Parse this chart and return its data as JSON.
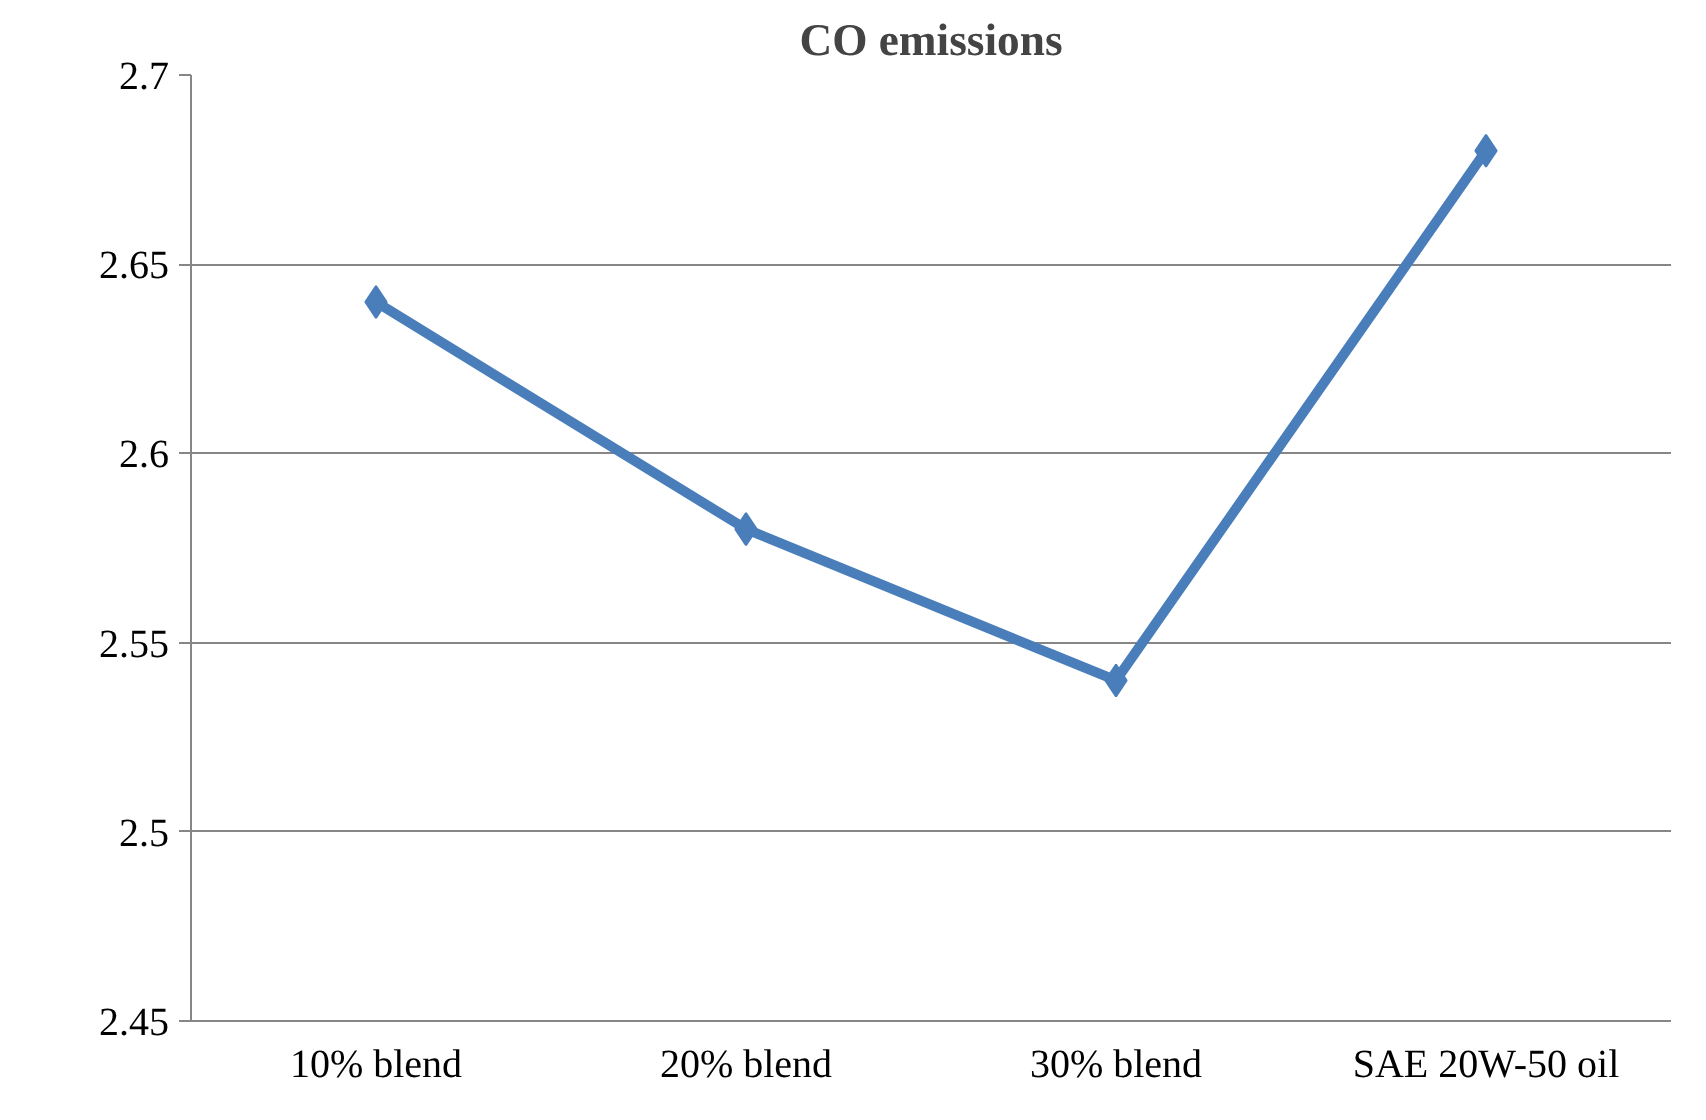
{
  "chart_data": {
    "type": "line",
    "title": "CO emissions",
    "categories": [
      "10% blend",
      "20% blend",
      "30% blend",
      "SAE 20W-50 oil"
    ],
    "series": [
      {
        "color": "#4a7ebb",
        "values": [
          2.64,
          2.58,
          2.54,
          2.68
        ]
      }
    ],
    "ylim": [
      2.45,
      2.7
    ],
    "yticks": [
      2.45,
      2.5,
      2.55,
      2.6,
      2.65,
      2.7
    ],
    "grid": "y",
    "marker": "diamond",
    "line_style": "solid"
  }
}
